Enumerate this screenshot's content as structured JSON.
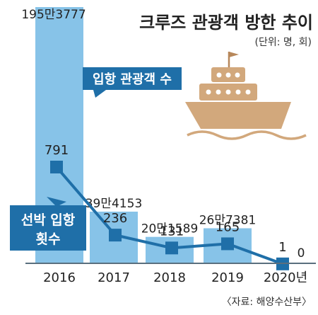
{
  "chart_data": {
    "type": "bar",
    "title": "크루즈 관광객 방한 추이",
    "unit": "(단위: 명, 회)",
    "source": "〈자료: 해양수산부〉",
    "categories": [
      "2016",
      "2017",
      "2018",
      "2019",
      "2020년"
    ],
    "bar_series": {
      "name": "입항 관광객 수",
      "values": [
        1953777,
        394153,
        201589,
        267381,
        0
      ],
      "labels": [
        "195만3777",
        "39만4153",
        "20만1589",
        "26만7381",
        "0"
      ]
    },
    "line_series": {
      "name_lines": [
        "선박 입항",
        "횟수"
      ],
      "values": [
        791,
        236,
        131,
        165,
        1
      ],
      "labels": [
        "791",
        "236",
        "131",
        "165",
        "1"
      ]
    },
    "colors": {
      "bar": "#87c3e8",
      "line": "#1f6fa8",
      "callout": "#1f6fa8",
      "ship": "#d2a87c",
      "ship_dark": "#b7875a",
      "axis": "#5a6f7e"
    }
  }
}
